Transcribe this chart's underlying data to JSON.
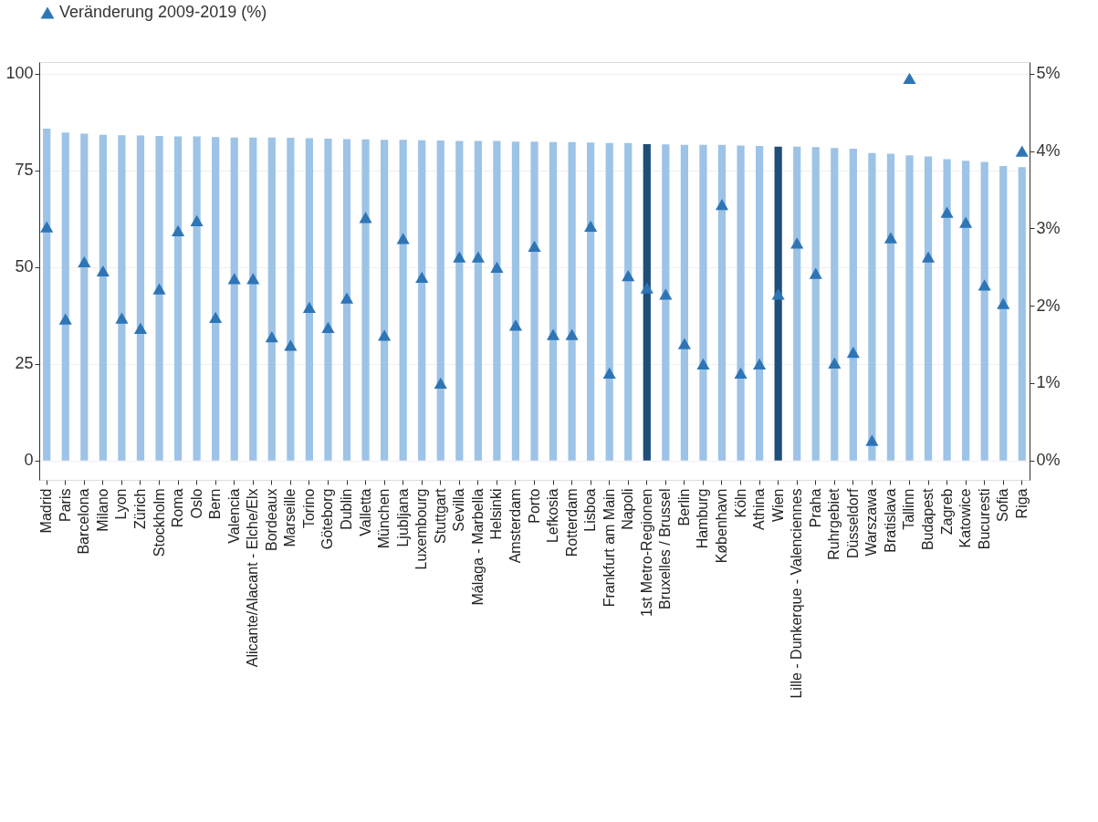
{
  "chart_data": {
    "type": "bar",
    "categories": [
      "Madrid",
      "Paris",
      "Barcelona",
      "Milano",
      "Lyon",
      "Zürich",
      "Stockholm",
      "Roma",
      "Oslo",
      "Bern",
      "Valencia",
      "Alicante/Alacant - Elche/Elx",
      "Bordeaux",
      "Marseille",
      "Torino",
      "Göteborg",
      "Dublin",
      "Valletta",
      "München",
      "Ljubljana",
      "Luxembourg",
      "Stuttgart",
      "Sevilla",
      "Málaga - Marbella",
      "Helsinki",
      "Amsterdam",
      "Porto",
      "Lefkosia",
      "Rotterdam",
      "Lisboa",
      "Frankfurt am Main",
      "Napoli",
      "1st Metro-Regionen",
      "Bruxelles / Brussel",
      "Berlin",
      "Hamburg",
      "København",
      "Köln",
      "Athina",
      "Wien",
      "Lille - Dunkerque - Valenciennes",
      "Praha",
      "Ruhrgebiet",
      "Düsseldorf",
      "Warszawa",
      "Bratislava",
      "Tallinn",
      "Budapest",
      "Zagreb",
      "Katowice",
      "Bucuresti",
      "Sofia",
      "Riga"
    ],
    "series": [
      {
        "values": [
          85.8,
          84.8,
          84.5,
          84.2,
          84.1,
          84.0,
          83.9,
          83.8,
          83.8,
          83.6,
          83.5,
          83.5,
          83.5,
          83.4,
          83.3,
          83.2,
          83.1,
          83.0,
          82.9,
          82.9,
          82.8,
          82.7,
          82.6,
          82.6,
          82.6,
          82.4,
          82.4,
          82.3,
          82.3,
          82.2,
          82.1,
          82.1,
          81.8,
          81.7,
          81.6,
          81.6,
          81.6,
          81.4,
          81.3,
          81.1,
          81.1,
          81.0,
          80.8,
          80.6,
          79.5,
          79.3,
          78.9,
          78.6,
          77.9,
          77.5,
          77.2,
          76.1,
          75.8
        ],
        "colors": [
          "#9dc3e6",
          "#9dc3e6",
          "#9dc3e6",
          "#9dc3e6",
          "#9dc3e6",
          "#9dc3e6",
          "#9dc3e6",
          "#9dc3e6",
          "#9dc3e6",
          "#9dc3e6",
          "#9dc3e6",
          "#9dc3e6",
          "#9dc3e6",
          "#9dc3e6",
          "#9dc3e6",
          "#9dc3e6",
          "#9dc3e6",
          "#9dc3e6",
          "#9dc3e6",
          "#9dc3e6",
          "#9dc3e6",
          "#9dc3e6",
          "#9dc3e6",
          "#9dc3e6",
          "#9dc3e6",
          "#9dc3e6",
          "#9dc3e6",
          "#9dc3e6",
          "#9dc3e6",
          "#9dc3e6",
          "#9dc3e6",
          "#9dc3e6",
          "#1f4e79",
          "#9dc3e6",
          "#9dc3e6",
          "#9dc3e6",
          "#9dc3e6",
          "#9dc3e6",
          "#9dc3e6",
          "#1f4e79",
          "#9dc3e6",
          "#9dc3e6",
          "#9dc3e6",
          "#9dc3e6",
          "#9dc3e6",
          "#9dc3e6",
          "#9dc3e6",
          "#9dc3e6",
          "#9dc3e6",
          "#9dc3e6",
          "#9dc3e6",
          "#9dc3e6",
          "#9dc3e6"
        ]
      },
      {
        "type": "scatter",
        "name": "Veränderung 2009-2019 (%)",
        "color": "#2e75b6",
        "axis": "y2",
        "marker": "triangle",
        "values": [
          3.02,
          1.83,
          2.57,
          2.45,
          1.84,
          1.71,
          2.22,
          2.97,
          3.1,
          1.85,
          2.35,
          2.35,
          1.6,
          1.49,
          1.98,
          1.72,
          2.1,
          3.14,
          1.62,
          2.87,
          2.37,
          1.0,
          2.63,
          2.63,
          2.5,
          1.75,
          2.77,
          1.63,
          1.63,
          3.03,
          1.13,
          2.39,
          2.23,
          2.15,
          1.51,
          1.25,
          3.31,
          1.13,
          1.25,
          2.15,
          2.81,
          2.42,
          1.26,
          1.4,
          0.26,
          2.88,
          4.94,
          2.63,
          3.21,
          3.08,
          2.27,
          2.03,
          4.0
        ]
      }
    ],
    "ylim": [
      -5,
      103
    ],
    "yticks": [
      0,
      25,
      50,
      75,
      100
    ],
    "y2lim": [
      -0.25,
      5.15
    ],
    "y2ticks": [
      {
        "value": 0,
        "label": "0%"
      },
      {
        "value": 1,
        "label": "1%"
      },
      {
        "value": 2,
        "label": "2%"
      },
      {
        "value": 3,
        "label": "3%"
      },
      {
        "value": 4,
        "label": "4%"
      },
      {
        "value": 5,
        "label": "5%"
      }
    ],
    "grid": "y",
    "legend": "top"
  }
}
